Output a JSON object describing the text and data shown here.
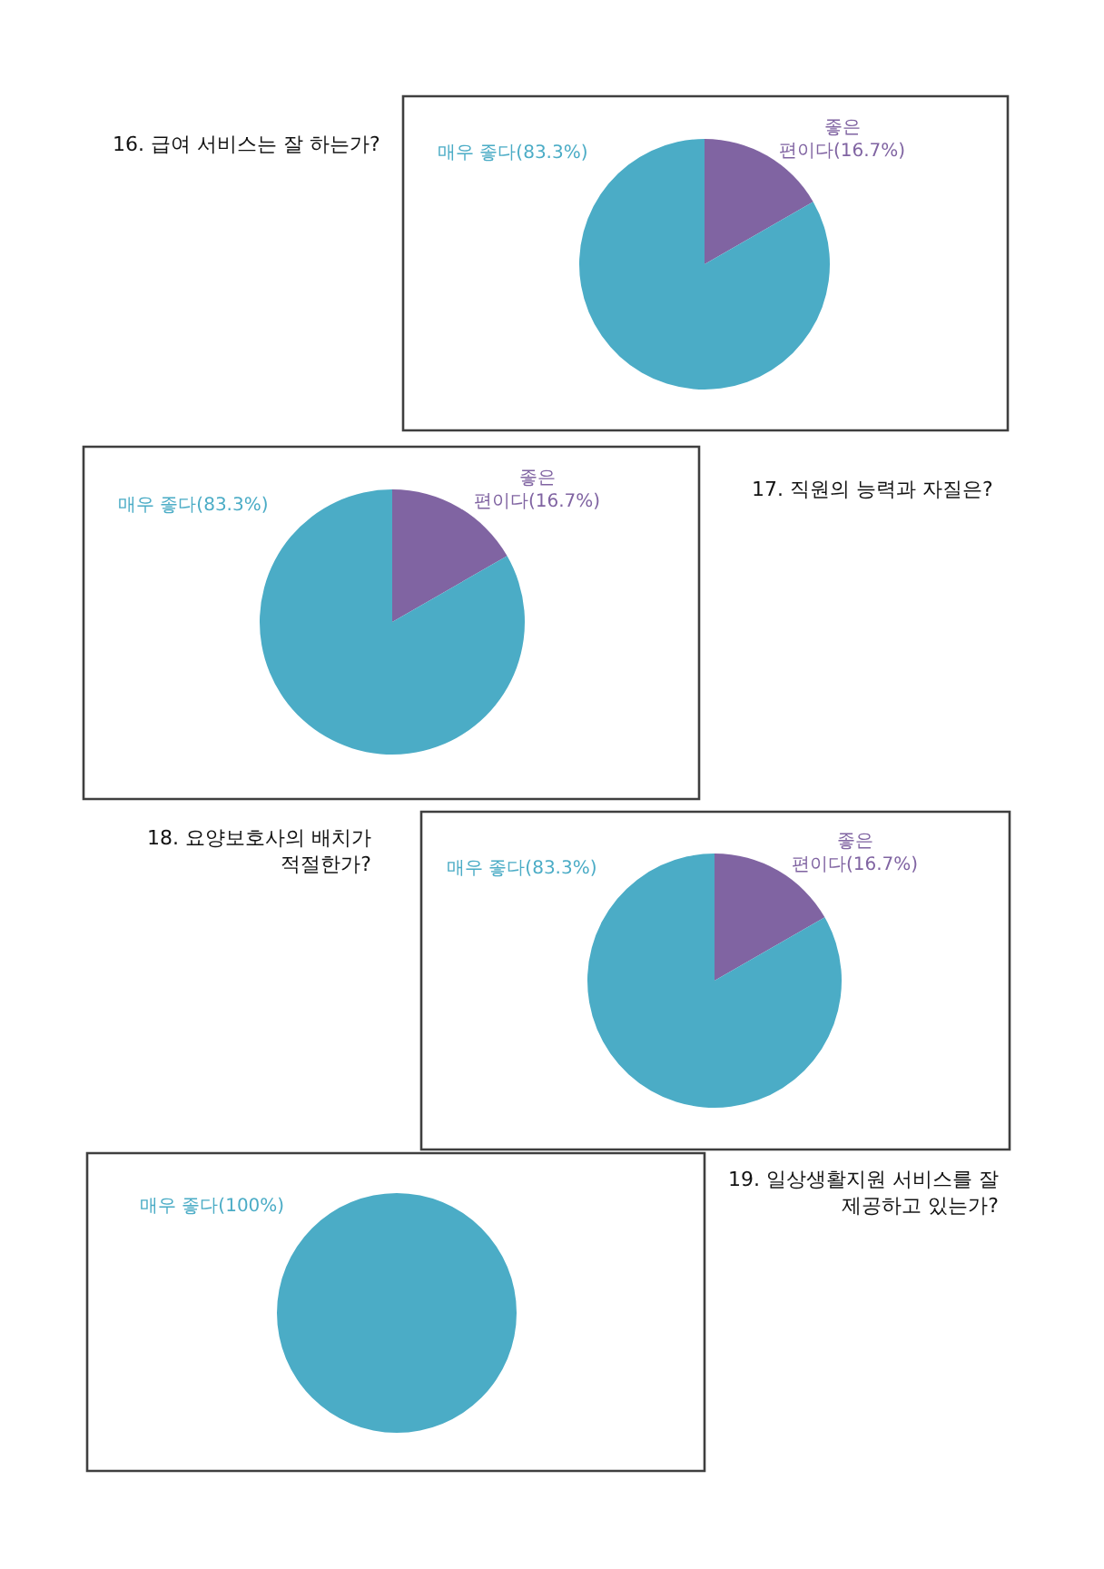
{
  "chart_data": [
    {
      "type": "pie",
      "title": "16. 급여 서비스는 잘 하는가?",
      "categories": [
        "좋은 편이다(16.7%)",
        "매우 좋다(83.3%)"
      ],
      "values": [
        16.7,
        83.3
      ],
      "colors": [
        "#8064a2",
        "#4bacc6"
      ]
    },
    {
      "type": "pie",
      "title": "17. 직원의 능력과 자질은?",
      "categories": [
        "좋은 편이다(16.7%)",
        "매우 좋다(83.3%)"
      ],
      "values": [
        16.7,
        83.3
      ],
      "colors": [
        "#8064a2",
        "#4bacc6"
      ]
    },
    {
      "type": "pie",
      "title": "18. 요양보호사의 배치가 적절한가?",
      "categories": [
        "좋은 편이다(16.7%)",
        "매우 좋다(83.3%)"
      ],
      "values": [
        16.7,
        83.3
      ],
      "colors": [
        "#8064a2",
        "#4bacc6"
      ]
    },
    {
      "type": "pie",
      "title": "19. 일상생활지원 서비스를 잘 제공하고 있는가?",
      "categories": [
        "매우 좋다(100%)"
      ],
      "values": [
        100
      ],
      "colors": [
        "#4bacc6"
      ]
    }
  ]
}
